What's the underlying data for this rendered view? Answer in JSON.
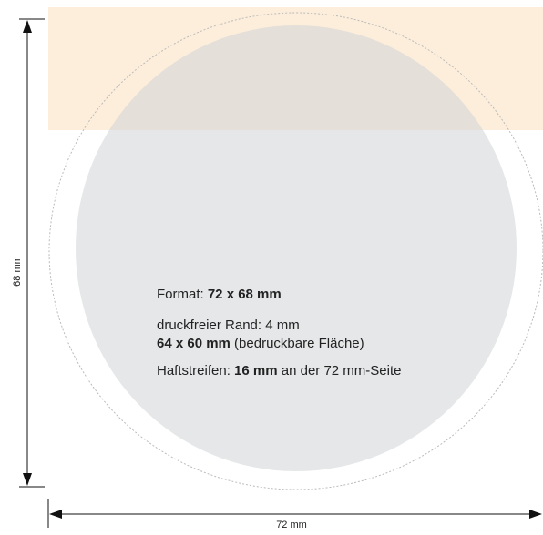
{
  "dimensions": {
    "height_label": "68 mm",
    "width_label": "72 mm"
  },
  "info": {
    "format_prefix": "Format: ",
    "format_value": "72 x 68 mm",
    "margin_text": "druckfreier Rand: 4 mm",
    "printable_value": "64 x 60 mm",
    "printable_suffix": " (bedruckbare Fläche)",
    "strip_prefix": "Haftstreifen: ",
    "strip_value": "16 mm",
    "strip_suffix": " an der 72 mm-Seite"
  },
  "colors": {
    "adhesive_strip": "#fdeedb",
    "printable_area": "#e5e6e8",
    "dashed_outline": "#bbbbbb",
    "arrows": "#111111"
  }
}
